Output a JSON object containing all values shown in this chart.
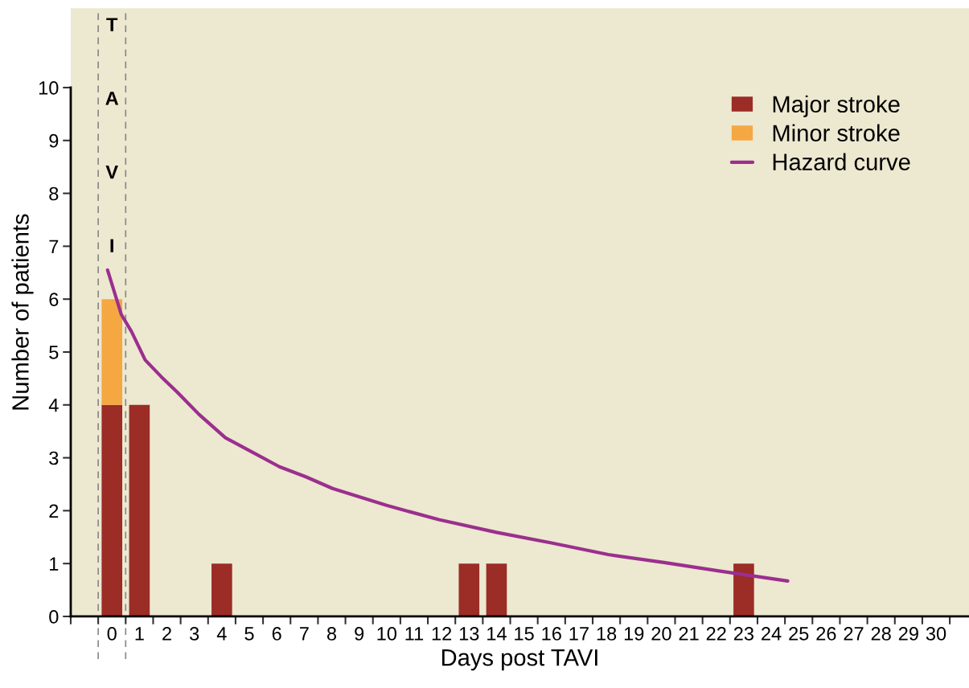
{
  "chart_data": {
    "type": "bar",
    "stacked": true,
    "xlabel": "Days post TAVI",
    "ylabel": "Number of patients",
    "x": [
      0,
      1,
      4,
      13,
      14,
      23
    ],
    "series": [
      {
        "name": "Major stroke",
        "color": "#9b2c26",
        "values": [
          4,
          4,
          1,
          1,
          1,
          1
        ]
      },
      {
        "name": "Minor stroke",
        "color": "#f5a742",
        "values": [
          2,
          null,
          null,
          null,
          null,
          null
        ]
      },
      {
        "name": "Hazard curve",
        "type": "line",
        "color": "#9b2f8e",
        "x": [
          -0.16,
          0.34,
          0.71,
          1.21,
          1.8,
          2.38,
          3.17,
          4.13,
          5.1,
          6.1,
          7.06,
          8.03,
          10.0,
          11.9,
          14.0,
          16.0,
          18.07,
          20.1,
          22.1,
          24.6
        ],
        "values": [
          6.55,
          5.71,
          5.39,
          4.85,
          4.53,
          4.24,
          3.82,
          3.38,
          3.11,
          2.83,
          2.64,
          2.42,
          2.1,
          1.83,
          1.59,
          1.39,
          1.17,
          1.02,
          0.86,
          0.67
        ]
      }
    ],
    "xlim": [
      -1.5,
      31.2
    ],
    "ylim": [
      0,
      11.5
    ],
    "xticks": [
      {
        "value": -1.5,
        "label": null
      },
      {
        "value": -0.5,
        "label": null
      },
      {
        "value": 0,
        "label": "0"
      },
      {
        "value": 0.5,
        "label": null
      },
      {
        "value": 1,
        "label": "1"
      },
      {
        "value": 1.5,
        "label": null
      },
      {
        "value": 2,
        "label": "2"
      },
      {
        "value": 2.5,
        "label": null
      },
      {
        "value": 3,
        "label": "3"
      },
      {
        "value": 3.5,
        "label": null
      },
      {
        "value": 4,
        "label": "4"
      },
      {
        "value": 4.5,
        "label": null
      },
      {
        "value": 5,
        "label": "5"
      },
      {
        "value": 5.5,
        "label": null
      },
      {
        "value": 6,
        "label": "6"
      },
      {
        "value": 6.5,
        "label": null
      },
      {
        "value": 7,
        "label": "7"
      },
      {
        "value": 7.5,
        "label": null
      },
      {
        "value": 8,
        "label": "8"
      },
      {
        "value": 8.5,
        "label": null
      },
      {
        "value": 9,
        "label": "9"
      },
      {
        "value": 9.5,
        "label": null
      },
      {
        "value": 10,
        "label": "10"
      },
      {
        "value": 10.5,
        "label": null
      },
      {
        "value": 11,
        "label": "11"
      },
      {
        "value": 11.5,
        "label": null
      },
      {
        "value": 12,
        "label": "12"
      },
      {
        "value": 12.5,
        "label": null
      },
      {
        "value": 13,
        "label": "13"
      },
      {
        "value": 13.5,
        "label": null
      },
      {
        "value": 14,
        "label": "14"
      },
      {
        "value": 14.5,
        "label": null
      },
      {
        "value": 15,
        "label": "15"
      },
      {
        "value": 15.5,
        "label": null
      },
      {
        "value": 16,
        "label": "16"
      },
      {
        "value": 16.5,
        "label": null
      },
      {
        "value": 17,
        "label": "17"
      },
      {
        "value": 17.5,
        "label": null
      },
      {
        "value": 18,
        "label": "18"
      },
      {
        "value": 18.5,
        "label": null
      },
      {
        "value": 19,
        "label": "19"
      },
      {
        "value": 19.5,
        "label": null
      },
      {
        "value": 20,
        "label": "20"
      },
      {
        "value": 20.5,
        "label": null
      },
      {
        "value": 21,
        "label": "21"
      },
      {
        "value": 21.5,
        "label": null
      },
      {
        "value": 22,
        "label": "22"
      },
      {
        "value": 22.5,
        "label": null
      },
      {
        "value": 23,
        "label": "23"
      },
      {
        "value": 23.5,
        "label": null
      },
      {
        "value": 24,
        "label": "24"
      },
      {
        "value": 24.5,
        "label": null
      },
      {
        "value": 25,
        "label": "25"
      },
      {
        "value": 25.5,
        "label": null
      },
      {
        "value": 26,
        "label": "26"
      },
      {
        "value": 26.5,
        "label": null
      },
      {
        "value": 27,
        "label": "27"
      },
      {
        "value": 27.5,
        "label": null
      },
      {
        "value": 28,
        "label": "28"
      },
      {
        "value": 28.5,
        "label": null
      },
      {
        "value": 29,
        "label": "29"
      },
      {
        "value": 29.5,
        "label": null
      },
      {
        "value": 30,
        "label": "30"
      },
      {
        "value": 30.5,
        "label": null
      }
    ],
    "yticks": [
      0,
      1,
      2,
      3,
      4,
      5,
      6,
      7,
      8,
      9,
      10
    ],
    "ref_lines": [
      {
        "axis": "x",
        "value": -0.5,
        "line_style": "dashed",
        "color": "#888888"
      },
      {
        "axis": "x",
        "value": 0.5,
        "line_style": "dashed",
        "color": "#888888"
      }
    ],
    "annotations": [
      "TAVI"
    ],
    "legend": "top right",
    "grid": false
  }
}
